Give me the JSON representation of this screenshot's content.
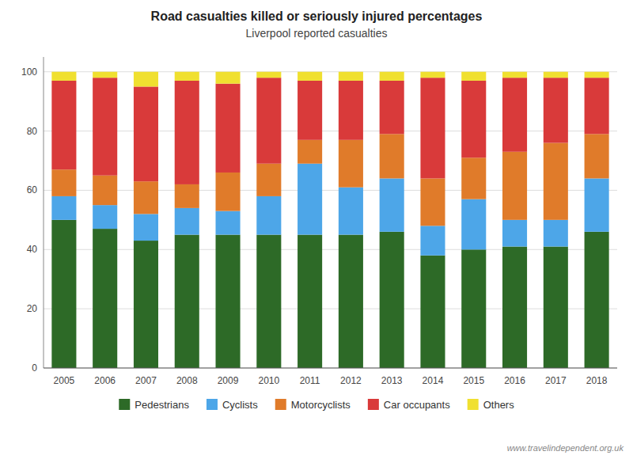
{
  "chart_data": {
    "type": "bar",
    "stacked": true,
    "title": "Road casualties killed or seriously injured percentages",
    "subtitle": "Liverpool reported casualties",
    "categories": [
      "2005",
      "2006",
      "2007",
      "2008",
      "2009",
      "2010",
      "2011",
      "2012",
      "2013",
      "2014",
      "2015",
      "2016",
      "2017",
      "2018"
    ],
    "series": [
      {
        "name": "Pedestrians",
        "color": "#2d6a27",
        "values": [
          50,
          47,
          43,
          45,
          45,
          45,
          45,
          45,
          46,
          38,
          40,
          41,
          41,
          46
        ]
      },
      {
        "name": "Cyclists",
        "color": "#4da6e8",
        "values": [
          8,
          8,
          9,
          9,
          8,
          13,
          24,
          16,
          18,
          10,
          17,
          9,
          9,
          18
        ]
      },
      {
        "name": "Motorcyclists",
        "color": "#e07b2a",
        "values": [
          9,
          10,
          11,
          8,
          13,
          11,
          8,
          16,
          15,
          16,
          14,
          23,
          26,
          15
        ]
      },
      {
        "name": "Car occupants",
        "color": "#d93a3a",
        "values": [
          30,
          33,
          32,
          35,
          30,
          29,
          20,
          20,
          18,
          34,
          26,
          25,
          22,
          19
        ]
      },
      {
        "name": "Others",
        "color": "#f0e030",
        "values": [
          3,
          2,
          5,
          3,
          4,
          2,
          3,
          3,
          3,
          2,
          3,
          2,
          2,
          2
        ]
      }
    ],
    "ylim": [
      0,
      105
    ],
    "yticks": [
      0,
      20,
      40,
      60,
      80,
      100
    ],
    "grid": true,
    "legend": "bottom",
    "annotations": [
      "www.travelindependent.org.uk"
    ]
  }
}
